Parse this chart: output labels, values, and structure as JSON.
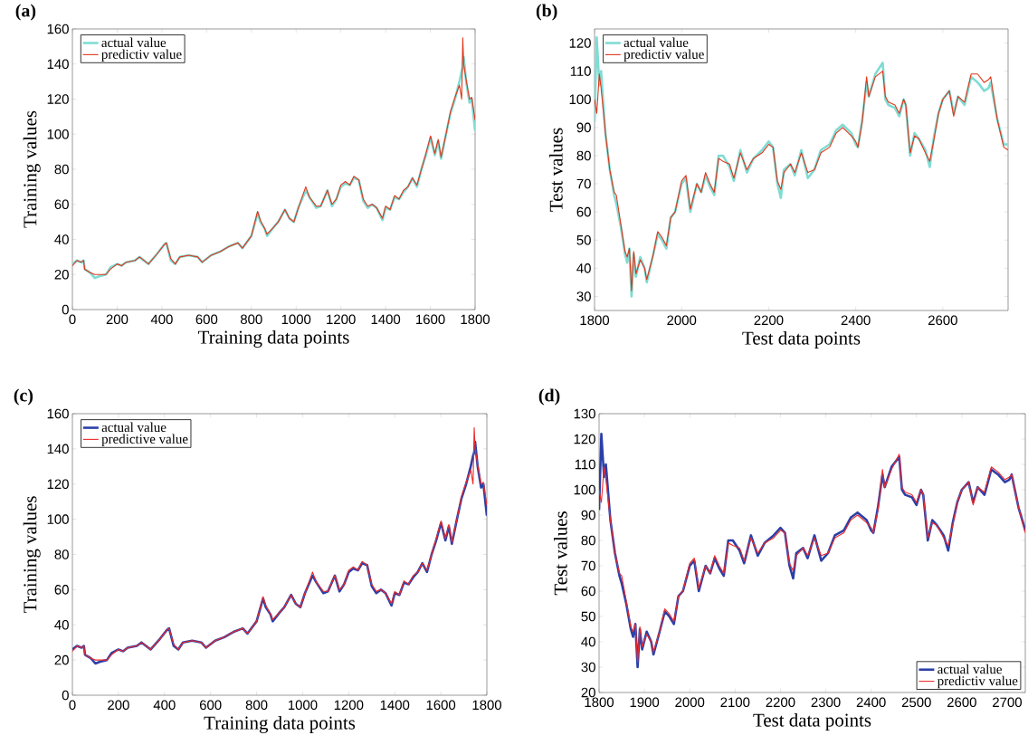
{
  "chart_data": [
    {
      "type": "line",
      "title": "(a)",
      "xlabel": "Training data points",
      "ylabel": "Training values",
      "legend": "top left",
      "xlim": [
        0,
        1800
      ],
      "ylim": [
        0,
        160
      ],
      "xticks": [
        0,
        200,
        400,
        600,
        800,
        1000,
        1200,
        1400,
        1600,
        1800
      ],
      "yticks": [
        0,
        20,
        40,
        60,
        80,
        100,
        120,
        140,
        160
      ],
      "x": [
        0,
        20,
        40,
        50,
        55,
        80,
        100,
        120,
        150,
        170,
        200,
        220,
        240,
        280,
        300,
        340,
        380,
        410,
        420,
        440,
        460,
        480,
        520,
        560,
        580,
        620,
        660,
        700,
        740,
        760,
        800,
        828,
        840,
        860,
        870,
        900,
        920,
        950,
        970,
        990,
        1010,
        1043,
        1060,
        1090,
        1110,
        1140,
        1160,
        1180,
        1200,
        1220,
        1240,
        1258,
        1280,
        1300,
        1320,
        1340,
        1360,
        1386,
        1400,
        1420,
        1440,
        1460,
        1480,
        1500,
        1520,
        1540,
        1560,
        1580,
        1601,
        1620,
        1635,
        1648,
        1670,
        1690,
        1710,
        1730,
        1740,
        1745,
        1749,
        1760,
        1775,
        1785,
        1800
      ],
      "series": [
        {
          "name": "actual value",
          "color": "#7fdcd4",
          "values": [
            26,
            28,
            27,
            28,
            23,
            21,
            18,
            19,
            20,
            24,
            26,
            25,
            27,
            28,
            30,
            26,
            32,
            37,
            38,
            28,
            26,
            30,
            31,
            30,
            27,
            31,
            33,
            36,
            38,
            35,
            42,
            55,
            50,
            46,
            42,
            47,
            50,
            57,
            52,
            50,
            58,
            68,
            64,
            58,
            59,
            68,
            59,
            63,
            70,
            72,
            71,
            75,
            74,
            62,
            58,
            60,
            58,
            51,
            58,
            57,
            64,
            63,
            67,
            70,
            75,
            70,
            80,
            88,
            98,
            88,
            96,
            86,
            100,
            112,
            120,
            130,
            136,
            138,
            144,
            130,
            118,
            120,
            102
          ]
        },
        {
          "name": "predictiv value",
          "color": "#e0361a",
          "values": [
            25,
            28,
            27,
            28,
            23,
            21,
            20,
            20,
            20,
            23,
            26,
            25,
            27,
            28,
            30,
            26,
            32,
            37,
            38,
            29,
            26,
            30,
            31,
            30,
            27,
            31,
            33,
            36,
            38,
            35,
            42,
            56,
            51,
            46,
            43,
            47,
            50,
            57,
            52,
            50,
            58,
            70,
            64,
            59,
            59,
            68,
            60,
            63,
            71,
            73,
            71,
            76,
            74,
            63,
            59,
            60,
            58,
            52,
            59,
            57,
            65,
            63,
            68,
            70,
            75,
            71,
            80,
            89,
            99,
            89,
            97,
            87,
            100,
            113,
            121,
            128,
            120,
            155,
            140,
            131,
            120,
            121,
            108
          ]
        }
      ]
    },
    {
      "type": "line",
      "title": "(b)",
      "xlabel": "Test data points",
      "ylabel": "Test values",
      "legend": "top left",
      "xlim": [
        1800,
        2750
      ],
      "ylim": [
        25,
        125
      ],
      "xticks": [
        1800,
        2000,
        2200,
        2400,
        2600
      ],
      "yticks": [
        30,
        40,
        50,
        60,
        70,
        80,
        90,
        100,
        110,
        120
      ],
      "x": [
        1800,
        1805,
        1811,
        1815,
        1825,
        1835,
        1845,
        1850,
        1860,
        1870,
        1875,
        1880,
        1885,
        1890,
        1895,
        1905,
        1915,
        1920,
        1935,
        1945,
        1955,
        1965,
        1975,
        1985,
        2000,
        2010,
        2020,
        2035,
        2045,
        2055,
        2065,
        2075,
        2085,
        2095,
        2110,
        2120,
        2135,
        2150,
        2165,
        2185,
        2200,
        2210,
        2220,
        2228,
        2235,
        2250,
        2260,
        2275,
        2290,
        2305,
        2320,
        2340,
        2355,
        2370,
        2390,
        2400,
        2405,
        2415,
        2425,
        2430,
        2445,
        2462,
        2468,
        2475,
        2490,
        2500,
        2510,
        2515,
        2525,
        2535,
        2545,
        2560,
        2570,
        2580,
        2590,
        2600,
        2615,
        2625,
        2635,
        2650,
        2665,
        2680,
        2695,
        2705,
        2710,
        2725,
        2740,
        2750
      ],
      "series": [
        {
          "name": "actual value",
          "color": "#7fdcd4",
          "values": [
            92,
            122,
            105,
            110,
            88,
            75,
            66,
            63,
            55,
            45,
            42,
            47,
            30,
            45,
            37,
            44,
            40,
            35,
            45,
            52,
            50,
            47,
            58,
            60,
            70,
            72,
            60,
            70,
            67,
            73,
            69,
            66,
            80,
            80,
            76,
            71,
            82,
            74,
            79,
            82,
            85,
            83,
            70,
            65,
            75,
            77,
            73,
            82,
            72,
            75,
            82,
            84,
            89,
            91,
            88,
            84,
            83,
            93,
            106,
            101,
            109,
            113,
            100,
            98,
            97,
            94,
            100,
            98,
            80,
            88,
            86,
            82,
            76,
            87,
            95,
            100,
            103,
            95,
            101,
            98,
            108,
            106,
            103,
            104,
            106,
            93,
            84,
            84
          ]
        },
        {
          "name": "predictiv value",
          "color": "#e0361a",
          "values": [
            100,
            95,
            109,
            104,
            88,
            75,
            67,
            66,
            56,
            46,
            44,
            47,
            32,
            46,
            38,
            43,
            40,
            36,
            45,
            53,
            51,
            48,
            58,
            60,
            71,
            73,
            61,
            70,
            67,
            74,
            70,
            67,
            79,
            78,
            77,
            72,
            81,
            75,
            79,
            81,
            84,
            83,
            71,
            68,
            74,
            77,
            74,
            81,
            74,
            75,
            81,
            83,
            88,
            90,
            87,
            85,
            83,
            92,
            108,
            101,
            108,
            110,
            101,
            99,
            98,
            95,
            100,
            98,
            81,
            87,
            86,
            81,
            78,
            86,
            95,
            100,
            103,
            94,
            101,
            99,
            109,
            109,
            106,
            107,
            108,
            93,
            83,
            82
          ]
        }
      ]
    },
    {
      "type": "line",
      "title": "(c)",
      "xlabel": "Training data points",
      "ylabel": "Training values",
      "legend": "top left",
      "xlim": [
        0,
        1800
      ],
      "ylim": [
        0,
        160
      ],
      "xticks": [
        0,
        200,
        400,
        600,
        800,
        1000,
        1200,
        1400,
        1600,
        1800
      ],
      "yticks": [
        0,
        20,
        40,
        60,
        80,
        100,
        120,
        140,
        160
      ],
      "x": [
        0,
        20,
        40,
        50,
        55,
        80,
        100,
        120,
        150,
        170,
        200,
        220,
        240,
        280,
        300,
        340,
        380,
        410,
        420,
        440,
        460,
        480,
        520,
        560,
        580,
        620,
        660,
        700,
        740,
        760,
        800,
        828,
        840,
        860,
        870,
        900,
        920,
        950,
        970,
        990,
        1010,
        1043,
        1060,
        1090,
        1110,
        1140,
        1160,
        1180,
        1200,
        1220,
        1240,
        1258,
        1280,
        1300,
        1320,
        1340,
        1360,
        1386,
        1400,
        1420,
        1440,
        1460,
        1480,
        1500,
        1520,
        1540,
        1560,
        1580,
        1601,
        1620,
        1635,
        1648,
        1670,
        1690,
        1710,
        1730,
        1740,
        1745,
        1749,
        1760,
        1775,
        1785,
        1800
      ],
      "series": [
        {
          "name": "actual value",
          "color": "#2b3fa8",
          "values": [
            26,
            28,
            27,
            28,
            23,
            21,
            18,
            19,
            20,
            24,
            26,
            25,
            27,
            28,
            30,
            26,
            32,
            37,
            38,
            28,
            26,
            30,
            31,
            30,
            27,
            31,
            33,
            36,
            38,
            35,
            42,
            55,
            50,
            46,
            42,
            47,
            50,
            57,
            52,
            50,
            58,
            68,
            64,
            58,
            59,
            68,
            59,
            63,
            70,
            72,
            71,
            75,
            74,
            62,
            58,
            60,
            58,
            51,
            58,
            57,
            64,
            63,
            67,
            70,
            75,
            70,
            80,
            88,
            98,
            88,
            96,
            86,
            100,
            112,
            120,
            130,
            136,
            138,
            144,
            130,
            118,
            120,
            102
          ]
        },
        {
          "name": "predictive value",
          "color": "#ee2a2a",
          "values": [
            25,
            28,
            27,
            28,
            23,
            21,
            20,
            20,
            20,
            23,
            26,
            25,
            27,
            28,
            30,
            26,
            32,
            37,
            38,
            29,
            26,
            30,
            31,
            30,
            27,
            31,
            33,
            36,
            38,
            35,
            42,
            56,
            51,
            46,
            43,
            47,
            50,
            57,
            52,
            50,
            58,
            70,
            64,
            59,
            59,
            68,
            60,
            63,
            71,
            73,
            71,
            76,
            74,
            63,
            59,
            60,
            58,
            52,
            59,
            57,
            65,
            63,
            68,
            70,
            75,
            71,
            80,
            89,
            99,
            89,
            97,
            87,
            100,
            113,
            121,
            128,
            120,
            152,
            140,
            131,
            120,
            121,
            108
          ]
        }
      ]
    },
    {
      "type": "line",
      "title": "(d)",
      "xlabel": "Test data points",
      "ylabel": "Test values",
      "legend": "bottom right",
      "xlim": [
        1800,
        2740
      ],
      "ylim": [
        20,
        130
      ],
      "xticks": [
        1800,
        1900,
        2000,
        2100,
        2200,
        2300,
        2400,
        2500,
        2600,
        2700
      ],
      "yticks": [
        20,
        30,
        40,
        50,
        60,
        70,
        80,
        90,
        100,
        110,
        120,
        130
      ],
      "x": [
        1800,
        1805,
        1811,
        1815,
        1825,
        1835,
        1845,
        1850,
        1860,
        1870,
        1875,
        1880,
        1885,
        1890,
        1895,
        1905,
        1915,
        1920,
        1935,
        1945,
        1955,
        1965,
        1975,
        1985,
        2000,
        2010,
        2020,
        2035,
        2045,
        2055,
        2065,
        2075,
        2085,
        2095,
        2110,
        2120,
        2135,
        2150,
        2165,
        2185,
        2200,
        2210,
        2220,
        2228,
        2235,
        2250,
        2260,
        2275,
        2290,
        2305,
        2320,
        2340,
        2355,
        2370,
        2390,
        2400,
        2405,
        2415,
        2425,
        2430,
        2445,
        2462,
        2468,
        2475,
        2490,
        2500,
        2510,
        2515,
        2525,
        2535,
        2545,
        2560,
        2570,
        2580,
        2590,
        2600,
        2615,
        2625,
        2635,
        2650,
        2665,
        2680,
        2695,
        2705,
        2710,
        2725,
        2740
      ],
      "series": [
        {
          "name": "actual value",
          "color": "#2b3fa8",
          "values": [
            92,
            122,
            105,
            110,
            88,
            75,
            66,
            63,
            55,
            45,
            42,
            47,
            30,
            45,
            37,
            44,
            40,
            35,
            45,
            52,
            50,
            47,
            58,
            60,
            70,
            72,
            60,
            70,
            67,
            73,
            69,
            66,
            80,
            80,
            76,
            71,
            82,
            74,
            79,
            82,
            85,
            83,
            70,
            65,
            75,
            77,
            73,
            82,
            72,
            75,
            82,
            84,
            89,
            91,
            88,
            84,
            83,
            93,
            106,
            101,
            109,
            113,
            100,
            98,
            97,
            94,
            100,
            98,
            80,
            88,
            86,
            82,
            76,
            87,
            95,
            100,
            103,
            95,
            101,
            98,
            108,
            106,
            103,
            104,
            106,
            93,
            84
          ]
        },
        {
          "name": "predictiv value",
          "color": "#ee2a2a",
          "values": [
            100,
            95,
            109,
            104,
            88,
            75,
            67,
            66,
            56,
            46,
            44,
            47,
            32,
            46,
            38,
            43,
            40,
            36,
            45,
            53,
            51,
            48,
            58,
            60,
            71,
            73,
            61,
            70,
            67,
            74,
            70,
            67,
            79,
            78,
            77,
            72,
            81,
            75,
            79,
            81,
            84,
            83,
            71,
            68,
            74,
            77,
            74,
            81,
            74,
            75,
            81,
            83,
            88,
            90,
            87,
            85,
            83,
            92,
            108,
            101,
            108,
            114,
            101,
            99,
            98,
            95,
            100,
            98,
            81,
            87,
            86,
            81,
            78,
            86,
            95,
            100,
            103,
            94,
            101,
            99,
            109,
            107,
            104,
            105,
            106,
            93,
            83
          ]
        }
      ]
    }
  ]
}
